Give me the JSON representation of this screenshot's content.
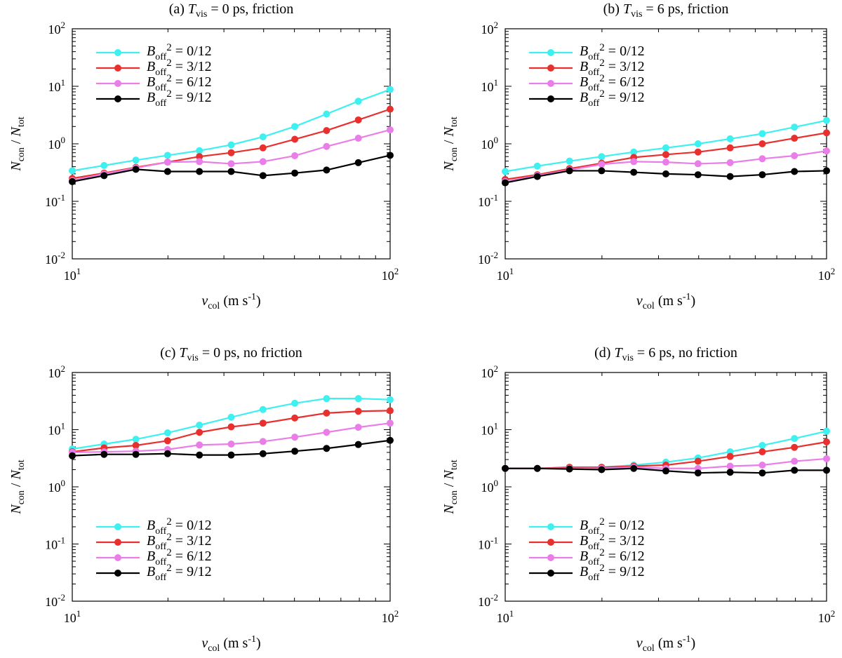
{
  "figure": {
    "x_ticks": [
      "10",
      "10"
    ],
    "x_tick_exps": [
      "1",
      "2"
    ],
    "y_ticks": [
      "10",
      "10",
      "10",
      "10",
      "10"
    ],
    "y_tick_exps": [
      "-2",
      "-1",
      "0",
      "1",
      "2"
    ],
    "xlabel": {
      "sym": "v",
      "sub": "col",
      "unit": " (m s",
      "unit_exp": "-1",
      "close": ")"
    },
    "ylabel": {
      "num": "N",
      "num_sub": "con",
      "slash": " / ",
      "den": "N",
      "den_sub": "tot"
    }
  },
  "colors": {
    "cyan": "#3ef0f0",
    "red": "#e8302e",
    "violet": "#ea7ee8",
    "black": "#000000"
  },
  "chart_data": [
    {
      "type": "line",
      "title_pre": "(a) ",
      "title_sym": "T",
      "title_sub": "vis",
      "title_post": " = 0 ps, friction",
      "xscale": "log",
      "yscale": "log",
      "xlim": [
        10,
        100
      ],
      "ylim": [
        0.01,
        100
      ],
      "xlabel": "v_col (m s^-1)",
      "ylabel": "N_con / N_tot",
      "legend_position": "top-left",
      "x": [
        10,
        12.59,
        15.85,
        19.95,
        25.12,
        31.62,
        39.81,
        50.12,
        63.1,
        79.43,
        100
      ],
      "series": [
        {
          "name_sym": "B",
          "name_sub": "off",
          "name_sup": "2",
          "name_val": " = 0/12",
          "color": "#3ef0f0",
          "values": [
            0.34,
            0.42,
            0.52,
            0.63,
            0.76,
            0.96,
            1.32,
            2.0,
            3.3,
            5.5,
            8.8
          ]
        },
        {
          "name_sym": "B",
          "name_sub": "off",
          "name_sup": "2",
          "name_val": " = 3/12",
          "color": "#e8302e",
          "values": [
            0.25,
            0.31,
            0.39,
            0.48,
            0.6,
            0.7,
            0.85,
            1.2,
            1.7,
            2.6,
            4.0
          ]
        },
        {
          "name_sym": "B",
          "name_sub": "off",
          "name_sup": "2",
          "name_val": " = 6/12",
          "color": "#ea7ee8",
          "values": [
            0.23,
            0.3,
            0.38,
            0.48,
            0.49,
            0.45,
            0.49,
            0.62,
            0.9,
            1.25,
            1.75
          ]
        },
        {
          "name_sym": "B",
          "name_sub": "off",
          "name_sup": "2",
          "name_val": " = 9/12",
          "color": "#000000",
          "values": [
            0.22,
            0.28,
            0.36,
            0.33,
            0.33,
            0.33,
            0.28,
            0.31,
            0.35,
            0.47,
            0.63
          ]
        }
      ]
    },
    {
      "type": "line",
      "title_pre": "(b) ",
      "title_sym": "T",
      "title_sub": "vis",
      "title_post": " = 6 ps, friction",
      "xscale": "log",
      "yscale": "log",
      "xlim": [
        10,
        100
      ],
      "ylim": [
        0.01,
        100
      ],
      "xlabel": "v_col (m s^-1)",
      "ylabel": "N_con / N_tot",
      "legend_position": "top-left",
      "x": [
        10,
        12.59,
        15.85,
        19.95,
        25.12,
        31.62,
        39.81,
        50.12,
        63.1,
        79.43,
        100
      ],
      "series": [
        {
          "name_sym": "B",
          "name_sub": "off",
          "name_sup": "2",
          "name_val": " = 0/12",
          "color": "#3ef0f0",
          "values": [
            0.33,
            0.41,
            0.5,
            0.6,
            0.72,
            0.85,
            1.0,
            1.22,
            1.5,
            1.95,
            2.55
          ]
        },
        {
          "name_sym": "B",
          "name_sub": "off",
          "name_sup": "2",
          "name_val": " = 3/12",
          "color": "#e8302e",
          "values": [
            0.24,
            0.29,
            0.37,
            0.46,
            0.58,
            0.65,
            0.72,
            0.85,
            1.0,
            1.25,
            1.55
          ]
        },
        {
          "name_sym": "B",
          "name_sub": "off",
          "name_sup": "2",
          "name_val": " = 6/12",
          "color": "#ea7ee8",
          "values": [
            0.22,
            0.28,
            0.35,
            0.44,
            0.49,
            0.48,
            0.45,
            0.47,
            0.55,
            0.62,
            0.75
          ]
        },
        {
          "name_sym": "B",
          "name_sub": "off",
          "name_sup": "2",
          "name_val": " = 9/12",
          "color": "#000000",
          "values": [
            0.21,
            0.27,
            0.34,
            0.34,
            0.32,
            0.3,
            0.29,
            0.27,
            0.29,
            0.33,
            0.34
          ]
        }
      ]
    },
    {
      "type": "line",
      "title_pre": "(c) ",
      "title_sym": "T",
      "title_sub": "vis",
      "title_post": " = 0 ps, no friction",
      "xscale": "log",
      "yscale": "log",
      "xlim": [
        10,
        100
      ],
      "ylim": [
        0.01,
        100
      ],
      "xlabel": "v_col (m s^-1)",
      "ylabel": "N_con / N_tot",
      "legend_position": "bottom-left",
      "x": [
        10,
        12.59,
        15.85,
        19.95,
        25.12,
        31.62,
        39.81,
        50.12,
        63.1,
        79.43,
        100
      ],
      "series": [
        {
          "name_sym": "B",
          "name_sub": "off",
          "name_sup": "2",
          "name_val": " = 0/12",
          "color": "#3ef0f0",
          "values": [
            4.6,
            5.6,
            6.8,
            8.8,
            12.0,
            16.5,
            22.5,
            29.0,
            35.0,
            35.0,
            33.5
          ]
        },
        {
          "name_sym": "B",
          "name_sub": "off",
          "name_sup": "2",
          "name_val": " = 3/12",
          "color": "#e8302e",
          "values": [
            4.1,
            4.8,
            5.3,
            6.4,
            9.0,
            11.2,
            13.0,
            16.0,
            19.5,
            21.0,
            21.5
          ]
        },
        {
          "name_sym": "B",
          "name_sub": "off",
          "name_sup": "2",
          "name_val": " = 6/12",
          "color": "#ea7ee8",
          "values": [
            4.0,
            4.1,
            4.2,
            4.5,
            5.4,
            5.6,
            6.2,
            7.4,
            9.0,
            11.0,
            13.0
          ]
        },
        {
          "name_sym": "B",
          "name_sub": "off",
          "name_sup": "2",
          "name_val": " = 9/12",
          "color": "#000000",
          "values": [
            3.5,
            3.7,
            3.7,
            3.8,
            3.6,
            3.6,
            3.8,
            4.2,
            4.7,
            5.5,
            6.5
          ]
        }
      ]
    },
    {
      "type": "line",
      "title_pre": "(d) ",
      "title_sym": "T",
      "title_sub": "vis",
      "title_post": " = 6 ps, no friction",
      "xscale": "log",
      "yscale": "log",
      "xlim": [
        10,
        100
      ],
      "ylim": [
        0.01,
        100
      ],
      "xlabel": "v_col (m s^-1)",
      "ylabel": "N_con / N_tot",
      "legend_position": "bottom-left",
      "x": [
        10,
        12.59,
        15.85,
        19.95,
        25.12,
        31.62,
        39.81,
        50.12,
        63.1,
        79.43,
        100
      ],
      "series": [
        {
          "name_sym": "B",
          "name_sub": "off",
          "name_sup": "2",
          "name_val": " = 0/12",
          "color": "#3ef0f0",
          "values": [
            2.1,
            2.1,
            2.2,
            2.2,
            2.4,
            2.7,
            3.2,
            4.1,
            5.3,
            7.0,
            9.4
          ]
        },
        {
          "name_sym": "B",
          "name_sub": "off",
          "name_sup": "2",
          "name_val": " = 3/12",
          "color": "#e8302e",
          "values": [
            2.1,
            2.1,
            2.2,
            2.2,
            2.3,
            2.4,
            2.8,
            3.4,
            4.1,
            4.9,
            6.1
          ]
        },
        {
          "name_sym": "B",
          "name_sub": "off",
          "name_sup": "2",
          "name_val": " = 6/12",
          "color": "#ea7ee8",
          "values": [
            2.1,
            2.1,
            2.1,
            2.1,
            2.2,
            2.1,
            2.1,
            2.3,
            2.4,
            2.8,
            3.1
          ]
        },
        {
          "name_sym": "B",
          "name_sub": "off",
          "name_sup": "2",
          "name_val": " = 9/12",
          "color": "#000000",
          "values": [
            2.1,
            2.1,
            2.05,
            2.0,
            2.1,
            1.9,
            1.75,
            1.8,
            1.75,
            1.95,
            1.95
          ]
        }
      ]
    }
  ]
}
